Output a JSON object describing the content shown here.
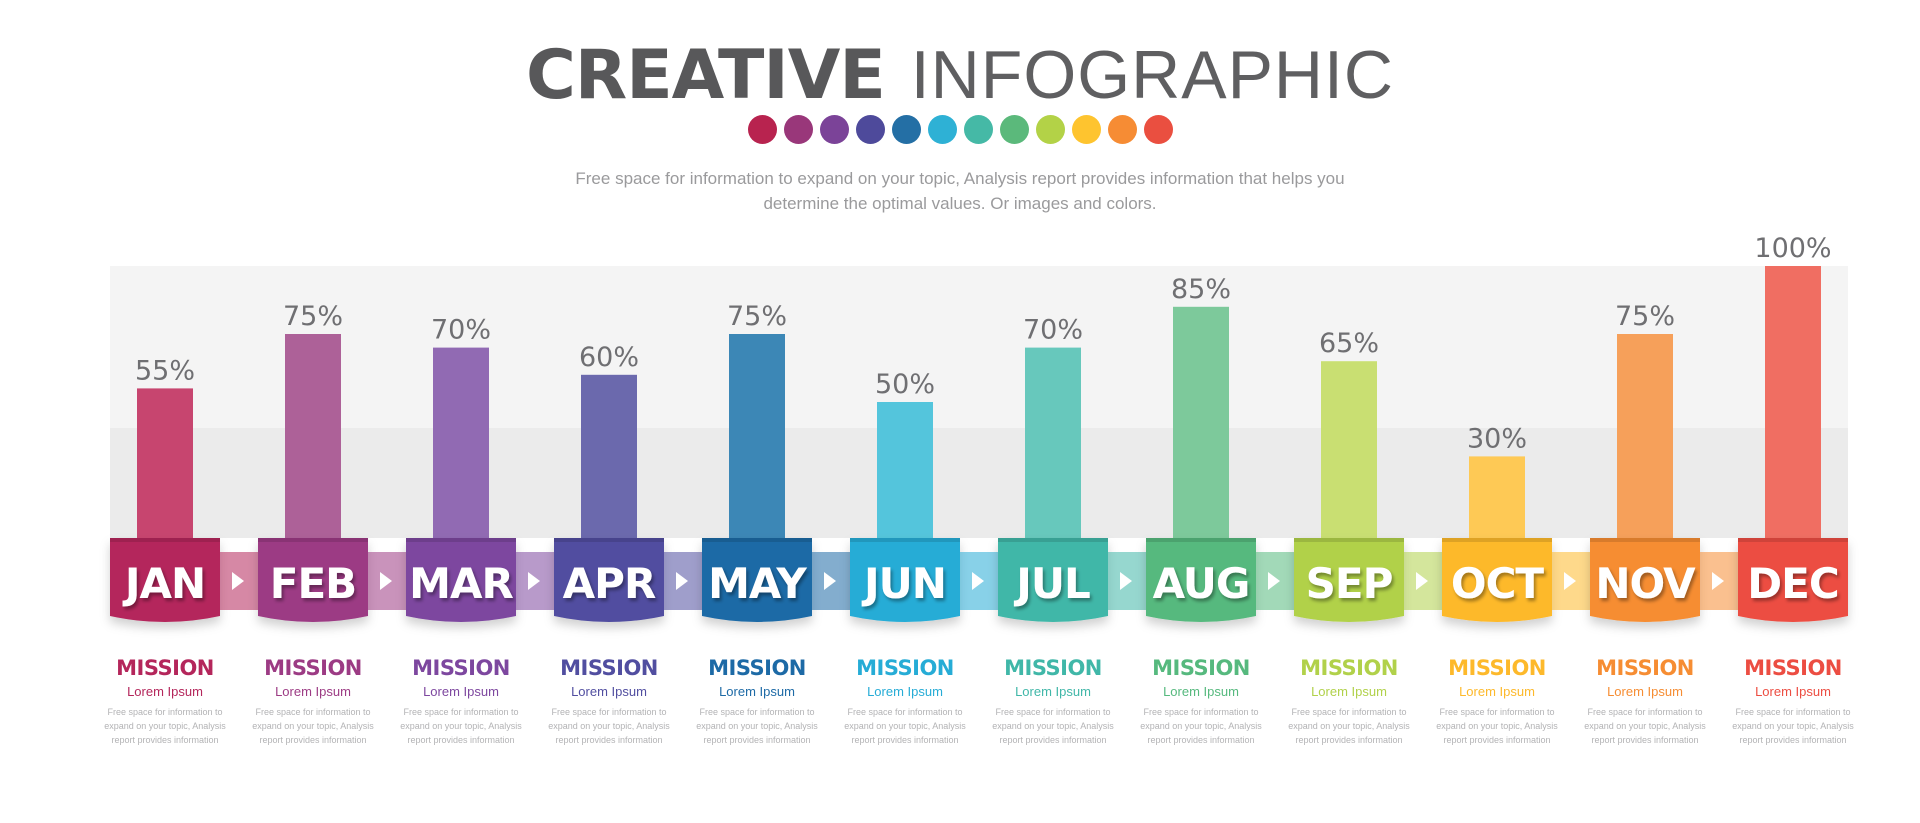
{
  "header": {
    "title_bold": "CREATIVE",
    "title_light": "INFOGRAPHIC",
    "subtitle": "Free space for information to expand on your topic, Analysis report provides information that helps you determine the optimal values. Or images and colors."
  },
  "palette": [
    "#b8234f",
    "#99377a",
    "#7b4398",
    "#4e4a9b",
    "#246fa5",
    "#2eb1d5",
    "#45b9a6",
    "#5bb97b",
    "#b3d247",
    "#fec42f",
    "#f68c34",
    "#ea4f40"
  ],
  "chart_data": {
    "type": "bar",
    "categories": [
      "JAN",
      "FEB",
      "MAR",
      "APR",
      "MAY",
      "JUN",
      "JUL",
      "AUG",
      "SEP",
      "OCT",
      "NOV",
      "DEC"
    ],
    "values": [
      55,
      75,
      70,
      60,
      75,
      50,
      70,
      85,
      65,
      30,
      75,
      100
    ],
    "value_labels": [
      "55%",
      "75%",
      "70%",
      "60%",
      "75%",
      "50%",
      "70%",
      "85%",
      "65%",
      "30%",
      "75%",
      "100%"
    ],
    "ylim": [
      0,
      100
    ],
    "colors": [
      "#c7456f",
      "#ad6198",
      "#916ab3",
      "#6b69ad",
      "#3c87b6",
      "#54c5dc",
      "#67c8bc",
      "#7dc99b",
      "#c9df72",
      "#fec955",
      "#f6a05a",
      "#f06e62"
    ],
    "tab_colors": [
      "#b4265b",
      "#9c3b84",
      "#7d479f",
      "#514ea0",
      "#1d6aa6",
      "#26acd6",
      "#40b7a8",
      "#56b97e",
      "#b1d14a",
      "#fdb92b",
      "#f68d33",
      "#ec4d42"
    ]
  },
  "items": [
    {
      "title": "MISSION",
      "subtitle": "Lorem Ipsum",
      "desc": "Free space for information to expand on your topic, Analysis report provides information"
    },
    {
      "title": "MISSION",
      "subtitle": "Lorem Ipsum",
      "desc": "Free space for information to expand on your topic, Analysis report provides information"
    },
    {
      "title": "MISSION",
      "subtitle": "Lorem Ipsum",
      "desc": "Free space for information to expand on your topic, Analysis report provides information"
    },
    {
      "title": "MISSION",
      "subtitle": "Lorem Ipsum",
      "desc": "Free space for information to expand on your topic, Analysis report provides information"
    },
    {
      "title": "MISSION",
      "subtitle": "Lorem Ipsum",
      "desc": "Free space for information to expand on your topic, Analysis report provides information"
    },
    {
      "title": "MISSION",
      "subtitle": "Lorem Ipsum",
      "desc": "Free space for information to expand on your topic, Analysis report provides information"
    },
    {
      "title": "MISSION",
      "subtitle": "Lorem Ipsum",
      "desc": "Free space for information to expand on your topic, Analysis report provides information"
    },
    {
      "title": "MISSION",
      "subtitle": "Lorem Ipsum",
      "desc": "Free space for information to expand on your topic, Analysis report provides information"
    },
    {
      "title": "MISSION",
      "subtitle": "Lorem Ipsum",
      "desc": "Free space for information to expand on your topic, Analysis report provides information"
    },
    {
      "title": "MISSION",
      "subtitle": "Lorem Ipsum",
      "desc": "Free space for information to expand on your topic, Analysis report provides information"
    },
    {
      "title": "MISSION",
      "subtitle": "Lorem Ipsum",
      "desc": "Free space for information to expand on your topic, Analysis report provides information"
    },
    {
      "title": "MISSION",
      "subtitle": "Lorem Ipsum",
      "desc": "Free space for information to expand on your topic, Analysis report provides information"
    }
  ]
}
